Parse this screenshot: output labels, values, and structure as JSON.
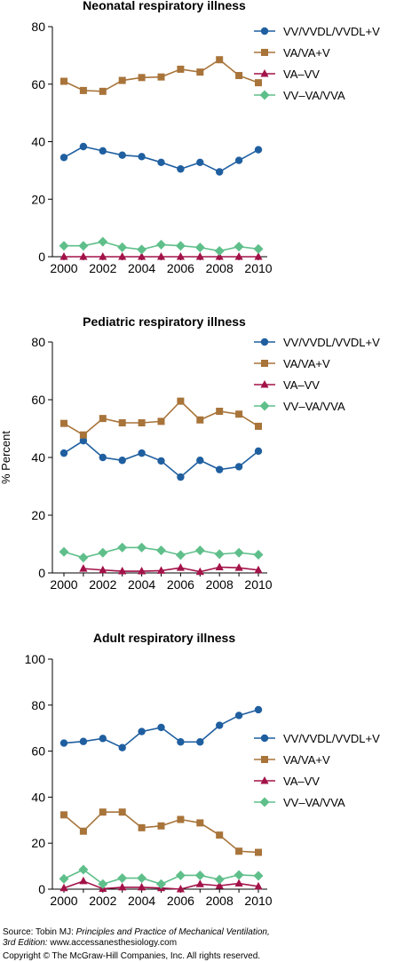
{
  "colors": {
    "series1": "#1f5fa0",
    "series2": "#a8743a",
    "series3": "#a31248",
    "series4": "#5fbf8a",
    "axis": "#000000"
  },
  "chart_data": [
    {
      "type": "line",
      "title": "Neonatal respiratory illness",
      "ylabel": "",
      "xlabel": "",
      "ylim": [
        0,
        80
      ],
      "yticks": [
        0,
        20,
        40,
        60,
        80
      ],
      "xticks": [
        2000,
        2002,
        2004,
        2006,
        2008,
        2010
      ],
      "legend_position": "top-right",
      "x": [
        2000,
        2001,
        2002,
        2003,
        2004,
        2005,
        2006,
        2007,
        2008,
        2009,
        2010
      ],
      "series": [
        {
          "name": "VV/VVDL/VVDL+V",
          "marker": "circle",
          "color": "#1f5fa0",
          "values": [
            34.5,
            38.3,
            36.8,
            35.3,
            34.8,
            32.8,
            30.5,
            32.8,
            29.5,
            33.5,
            37.2
          ]
        },
        {
          "name": "VA/VA+V",
          "marker": "square",
          "color": "#a8743a",
          "values": [
            61,
            57.8,
            57.5,
            61.3,
            62.3,
            62.5,
            65.2,
            64.2,
            68.5,
            63,
            60.5
          ]
        },
        {
          "name": "VA–VV",
          "marker": "triangle",
          "color": "#a31248",
          "values": [
            0,
            0,
            0,
            0,
            0,
            0,
            0,
            0,
            0,
            0,
            0
          ]
        },
        {
          "name": "VV–VA/VVA",
          "marker": "diamond",
          "color": "#5fbf8a",
          "values": [
            3.8,
            3.8,
            5.2,
            3.3,
            2.5,
            4.2,
            3.8,
            3.2,
            2.0,
            3.5,
            2.7
          ]
        }
      ]
    },
    {
      "type": "line",
      "title": "Pediatric respiratory illness",
      "ylabel": "% Percent",
      "xlabel": "",
      "ylim": [
        0,
        80
      ],
      "yticks": [
        0,
        20,
        40,
        60,
        80
      ],
      "xticks": [
        2000,
        2002,
        2004,
        2006,
        2008,
        2010
      ],
      "legend_position": "top-right",
      "x": [
        2000,
        2001,
        2002,
        2003,
        2004,
        2005,
        2006,
        2007,
        2008,
        2009,
        2010
      ],
      "series": [
        {
          "name": "VV/VVDL/VVDL+V",
          "marker": "circle",
          "color": "#1f5fa0",
          "values": [
            41.5,
            45.8,
            40,
            39,
            41.5,
            38.8,
            33.2,
            39,
            35.8,
            36.8,
            42.2
          ]
        },
        {
          "name": "VA/VA+V",
          "marker": "square",
          "color": "#a8743a",
          "values": [
            51.8,
            47.8,
            53.5,
            52,
            52,
            52.5,
            59.5,
            53,
            56,
            55,
            50.8
          ]
        },
        {
          "name": "VA–VV",
          "marker": "triangle",
          "color": "#a31248",
          "values": [
            null,
            1.5,
            1.0,
            0.6,
            0.6,
            0.8,
            1.8,
            0.4,
            2.0,
            1.8,
            1.0
          ]
        },
        {
          "name": "VV–VA/VVA",
          "marker": "diamond",
          "color": "#5fbf8a",
          "values": [
            7.3,
            5.3,
            7.0,
            8.8,
            8.8,
            7.8,
            6.2,
            7.8,
            6.5,
            7.0,
            6.3
          ]
        }
      ]
    },
    {
      "type": "line",
      "title": "Adult respiratory illness",
      "ylabel": "",
      "xlabel": "",
      "ylim": [
        0,
        100
      ],
      "yticks": [
        0,
        20,
        40,
        60,
        80,
        100
      ],
      "xticks": [
        2000,
        2002,
        2004,
        2006,
        2008,
        2010
      ],
      "legend_position": "right",
      "x": [
        2000,
        2001,
        2002,
        2003,
        2004,
        2005,
        2006,
        2007,
        2008,
        2009,
        2010
      ],
      "series": [
        {
          "name": "VV/VVDL/VVDL+V",
          "marker": "circle",
          "color": "#1f5fa0",
          "values": [
            63.5,
            64.2,
            65.5,
            61.5,
            68.5,
            70.3,
            64,
            64,
            71.2,
            75.5,
            78
          ]
        },
        {
          "name": "VA/VA+V",
          "marker": "square",
          "color": "#a8743a",
          "values": [
            32.3,
            25.2,
            33.5,
            33.5,
            26.7,
            27.5,
            30.3,
            28.8,
            23.5,
            16.5,
            16
          ]
        },
        {
          "name": "VA–VV",
          "marker": "triangle",
          "color": "#a31248",
          "values": [
            0.5,
            3.5,
            0.2,
            0.8,
            0.8,
            0.5,
            0,
            2.2,
            1.5,
            2.5,
            1.2
          ]
        },
        {
          "name": "VV–VA/VVA",
          "marker": "diamond",
          "color": "#5fbf8a",
          "values": [
            4.5,
            8.5,
            2.2,
            4.8,
            4.8,
            2.2,
            6,
            6,
            4.2,
            6.2,
            5.8
          ]
        }
      ]
    }
  ],
  "source": {
    "prefix": "Source: Tobin MJ: ",
    "book": "Principles and Practice of Mechanical Ventilation,",
    "edition": "3rd Edition:",
    "url": " www.accessanesthesiology.com",
    "copyright": "Copyright © The McGraw-Hill Companies, Inc. All rights reserved."
  }
}
